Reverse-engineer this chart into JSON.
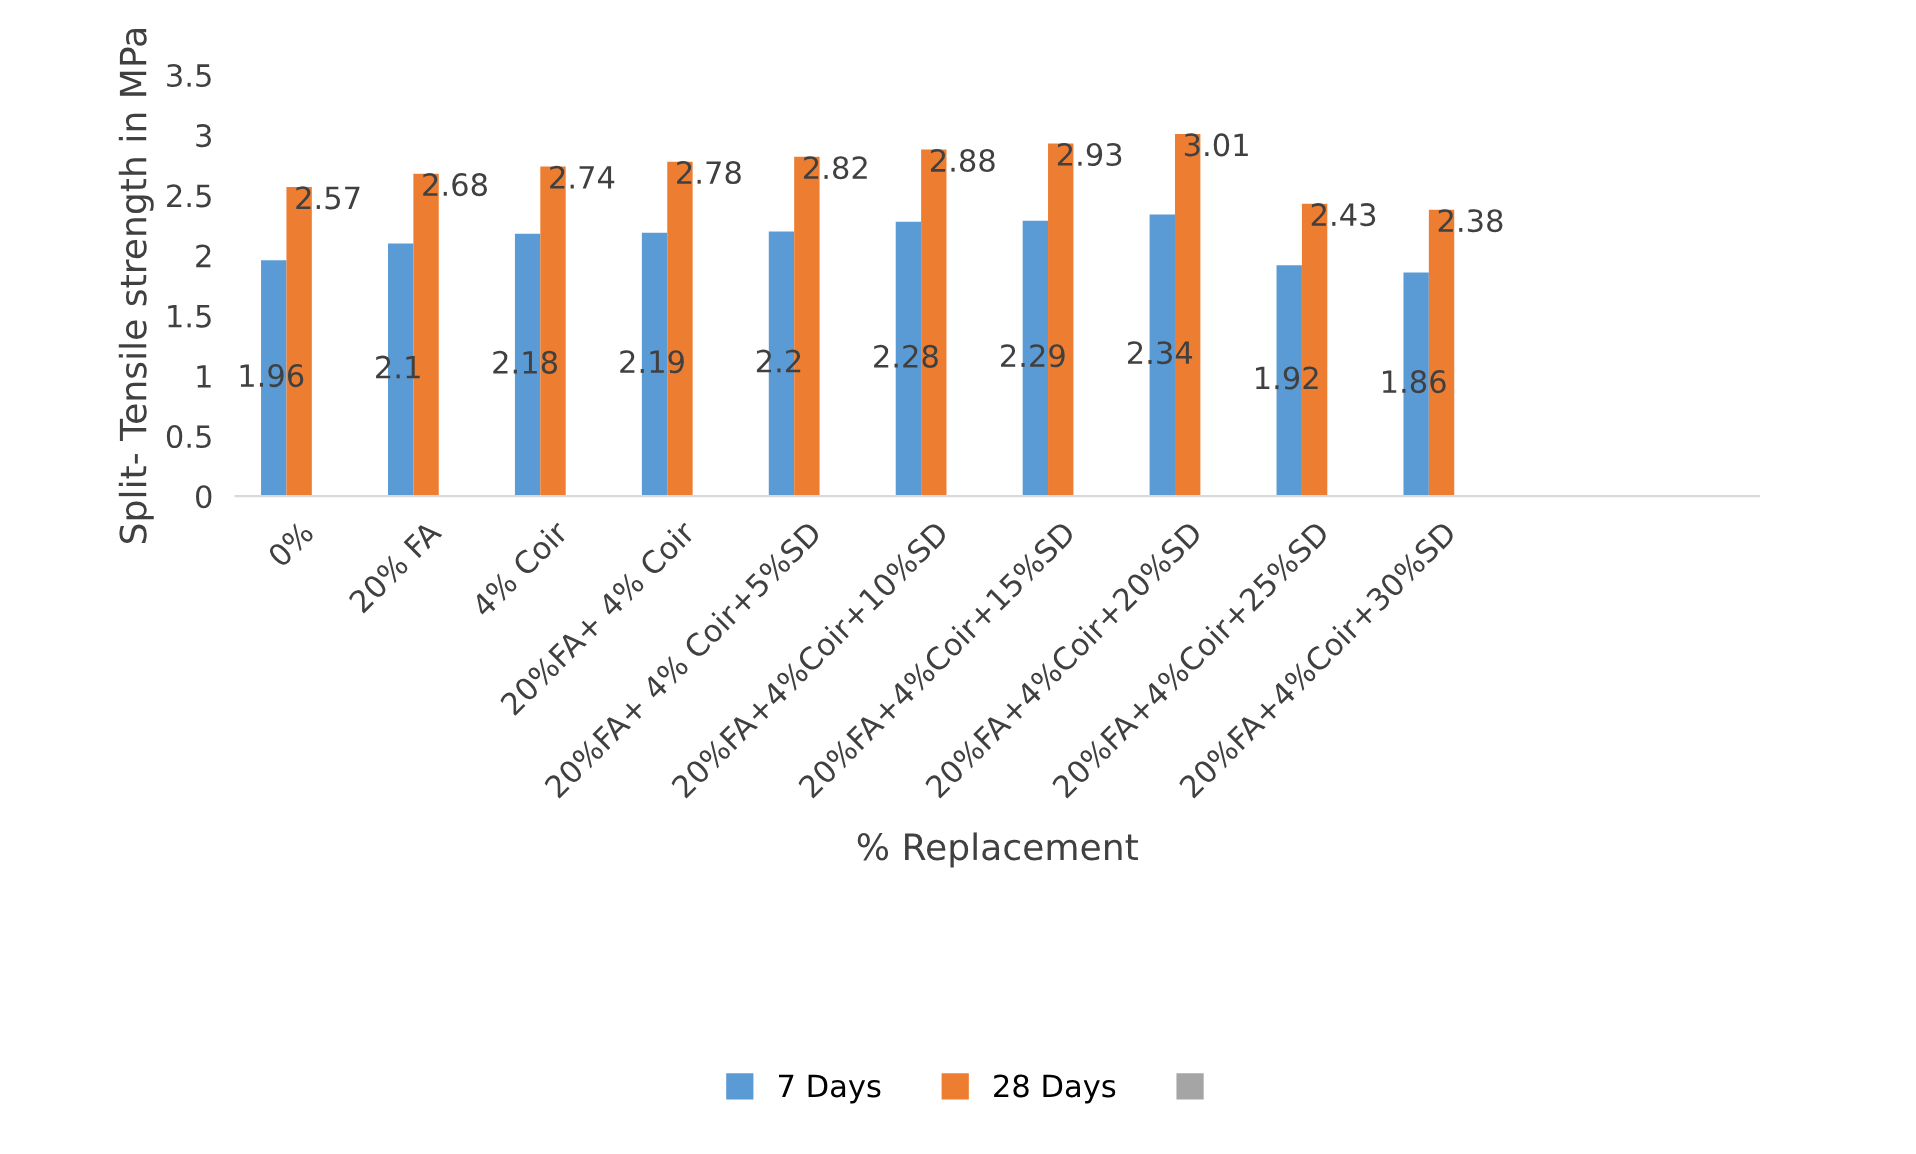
{
  "chart_data": {
    "type": "bar",
    "xlabel": "% Replacement",
    "ylabel": "Split- Tensile strength in MPa",
    "categories": [
      "0%",
      "20% FA",
      "4% Coir",
      "20%FA+ 4% Coir",
      "20%FA+ 4% Coir+5%SD",
      "20%FA+4%Coir+10%SD",
      "20%FA+4%Coir+15%SD",
      "20%FA+4%Coir+20%SD",
      "20%FA+4%Coir+25%SD",
      "20%FA+4%Coir+30%SD",
      null,
      null
    ],
    "series": [
      {
        "name": "7 Days",
        "color": "#5b9bd5",
        "values": [
          1.96,
          2.1,
          2.18,
          2.19,
          2.2,
          2.28,
          2.29,
          2.34,
          1.92,
          1.86,
          null,
          null
        ]
      },
      {
        "name": "28 Days",
        "color": "#ed7d31",
        "values": [
          2.57,
          2.68,
          2.74,
          2.78,
          2.82,
          2.88,
          2.93,
          3.01,
          2.43,
          2.38,
          null,
          null
        ]
      },
      {
        "color": "#a5a5a5",
        "values": [
          null,
          null,
          null,
          null,
          null,
          null,
          null,
          null,
          null,
          null,
          null,
          null
        ]
      }
    ],
    "ylim": [
      0,
      3.5
    ],
    "yticks": [
      0,
      0.5,
      1,
      1.5,
      2,
      2.5,
      3,
      3.5
    ],
    "grid": false,
    "legend": "bottom",
    "data_labels": true
  }
}
